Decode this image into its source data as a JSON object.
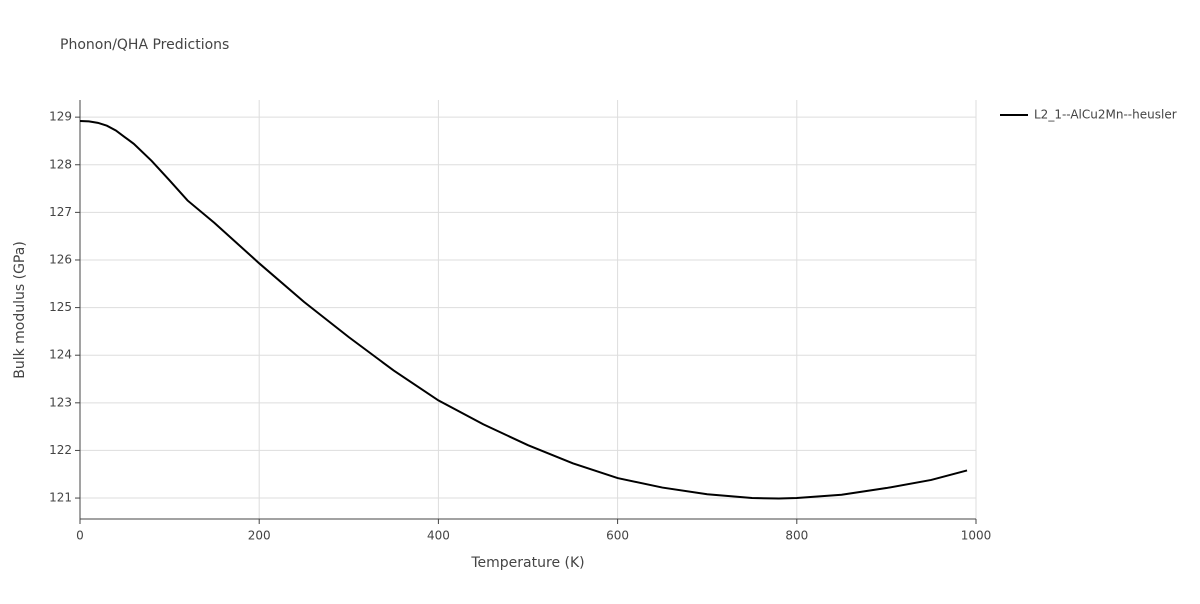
{
  "chart_data": {
    "type": "line",
    "title": "Phonon/QHA Predictions",
    "x_label": "Temperature (K)",
    "y_label": "Bulk modulus (GPa)",
    "x": [
      0,
      10,
      20,
      30,
      40,
      50,
      60,
      80,
      100,
      120,
      150,
      200,
      250,
      300,
      350,
      400,
      450,
      500,
      550,
      600,
      650,
      700,
      750,
      780,
      800,
      850,
      900,
      950,
      990
    ],
    "series": [
      {
        "name": "L2_1--AlCu2Mn--heusler",
        "color": "#000000",
        "values": [
          128.92,
          128.91,
          128.88,
          128.82,
          128.72,
          128.58,
          128.44,
          128.08,
          127.67,
          127.25,
          126.78,
          125.93,
          125.12,
          124.38,
          123.68,
          123.05,
          122.55,
          122.11,
          121.73,
          121.42,
          121.22,
          121.08,
          121.0,
          120.99,
          121.0,
          121.07,
          121.21,
          121.38,
          121.58
        ]
      }
    ],
    "xlim": [
      0,
      1000
    ],
    "xticks": [
      0,
      200,
      400,
      600,
      800,
      1000
    ],
    "ylim": [
      120.56,
      129.36
    ],
    "yticks": [
      121,
      122,
      123,
      124,
      125,
      126,
      127,
      128,
      129
    ],
    "grid": true,
    "legend": "right"
  }
}
